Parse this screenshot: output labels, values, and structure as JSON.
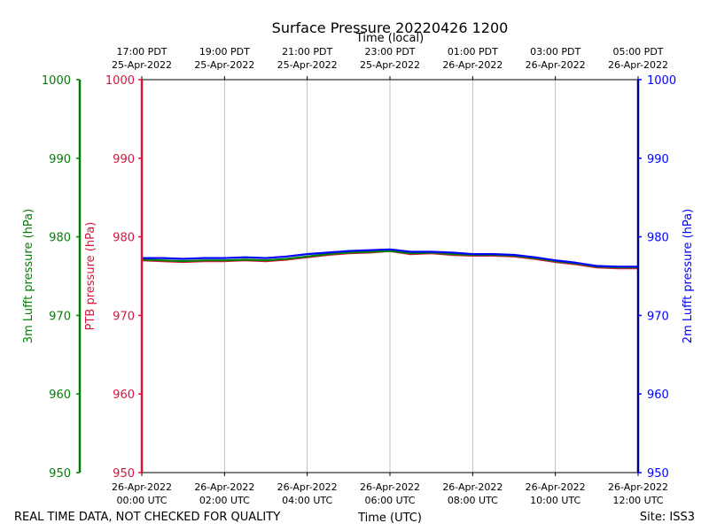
{
  "chart_data": {
    "type": "line",
    "title": "Surface Pressure 20220426 1200",
    "top_axis_label": "Time (local)",
    "xlabel": "Time (UTC)",
    "x_range_hours_utc": [
      0,
      12
    ],
    "bottom_ticks": [
      {
        "hour": 0,
        "line1": "26-Apr-2022",
        "line2": "00:00 UTC"
      },
      {
        "hour": 2,
        "line1": "26-Apr-2022",
        "line2": "02:00 UTC"
      },
      {
        "hour": 4,
        "line1": "26-Apr-2022",
        "line2": "04:00 UTC"
      },
      {
        "hour": 6,
        "line1": "26-Apr-2022",
        "line2": "06:00 UTC"
      },
      {
        "hour": 8,
        "line1": "26-Apr-2022",
        "line2": "08:00 UTC"
      },
      {
        "hour": 10,
        "line1": "26-Apr-2022",
        "line2": "10:00 UTC"
      },
      {
        "hour": 12,
        "line1": "26-Apr-2022",
        "line2": "12:00 UTC"
      }
    ],
    "top_ticks": [
      {
        "hour": 0,
        "line1": "17:00 PDT",
        "line2": "25-Apr-2022"
      },
      {
        "hour": 2,
        "line1": "19:00 PDT",
        "line2": "25-Apr-2022"
      },
      {
        "hour": 4,
        "line1": "21:00 PDT",
        "line2": "25-Apr-2022"
      },
      {
        "hour": 6,
        "line1": "23:00 PDT",
        "line2": "25-Apr-2022"
      },
      {
        "hour": 8,
        "line1": "01:00 PDT",
        "line2": "26-Apr-2022"
      },
      {
        "hour": 10,
        "line1": "03:00 PDT",
        "line2": "26-Apr-2022"
      },
      {
        "hour": 12,
        "line1": "05:00 PDT",
        "line2": "26-Apr-2022"
      }
    ],
    "ylim": [
      950,
      1000
    ],
    "y_ticks": [
      950,
      960,
      970,
      980,
      990,
      1000
    ],
    "grid": "vertical",
    "axes": {
      "lufft3m": {
        "label": "3m Lufft pressure (hPa)",
        "color": "#008000"
      },
      "ptb": {
        "label": "PTB pressure (hPa)",
        "color": "#dc143c"
      },
      "lufft2m": {
        "label": "2m Lufft pressure (hPa)",
        "color": "#0000ff"
      }
    },
    "series": [
      {
        "key": "ptb",
        "color": "#dc143c",
        "x": [
          0,
          0.5,
          1,
          1.5,
          2,
          2.5,
          3,
          3.5,
          4,
          4.5,
          5,
          5.5,
          6,
          6.5,
          7,
          7.5,
          8,
          8.5,
          9,
          9.5,
          10,
          10.5,
          11,
          11.5,
          12
        ],
        "y": [
          977.0,
          976.9,
          976.8,
          976.9,
          976.9,
          977.0,
          976.9,
          977.1,
          977.4,
          977.7,
          977.9,
          978.0,
          978.2,
          977.8,
          977.9,
          977.7,
          977.6,
          977.6,
          977.5,
          977.2,
          976.8,
          976.5,
          976.1,
          976.0,
          976.0
        ]
      },
      {
        "key": "lufft3m",
        "color": "#008000",
        "x": [
          0,
          0.5,
          1,
          1.5,
          2,
          2.5,
          3,
          3.5,
          4,
          4.5,
          5,
          5.5,
          6,
          6.5,
          7,
          7.5,
          8,
          8.5,
          9,
          9.5,
          10,
          10.5,
          11,
          11.5,
          12
        ],
        "y": [
          977.1,
          977.0,
          976.9,
          977.0,
          977.0,
          977.1,
          977.0,
          977.2,
          977.5,
          977.8,
          978.0,
          978.1,
          978.2,
          977.9,
          978.0,
          977.8,
          977.7,
          977.7,
          977.6,
          977.3,
          976.9,
          976.6,
          976.2,
          976.1,
          976.1
        ]
      },
      {
        "key": "lufft2m",
        "color": "#0000ff",
        "x": [
          0,
          0.5,
          1,
          1.5,
          2,
          2.5,
          3,
          3.5,
          4,
          4.5,
          5,
          5.5,
          6,
          6.5,
          7,
          7.5,
          8,
          8.5,
          9,
          9.5,
          10,
          10.5,
          11,
          11.5,
          12
        ],
        "y": [
          977.3,
          977.3,
          977.2,
          977.3,
          977.3,
          977.4,
          977.3,
          977.5,
          977.8,
          978.0,
          978.2,
          978.3,
          978.4,
          978.1,
          978.1,
          978.0,
          977.8,
          977.8,
          977.7,
          977.4,
          977.0,
          976.7,
          976.3,
          976.2,
          976.2
        ]
      }
    ]
  },
  "footer": {
    "disclaimer": "REAL TIME DATA, NOT CHECKED FOR QUALITY",
    "site": "Site: ISS3"
  }
}
